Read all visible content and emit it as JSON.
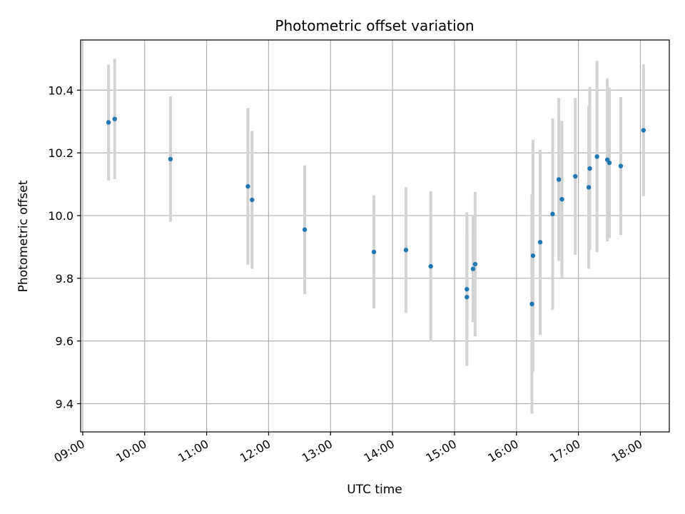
{
  "chart_data": {
    "type": "scatter",
    "title": "Photometric offset variation",
    "xlabel": "UTC time",
    "ylabel": "Photometric offset",
    "xlim": [
      "08:58",
      "18:28"
    ],
    "ylim": [
      9.31,
      10.56
    ],
    "x_ticks": [
      "09:00",
      "10:00",
      "11:00",
      "12:00",
      "13:00",
      "14:00",
      "15:00",
      "16:00",
      "17:00",
      "18:00"
    ],
    "y_ticks": [
      9.4,
      9.6,
      9.8,
      10.0,
      10.2,
      10.4
    ],
    "grid": true,
    "legend": "none",
    "colors": {
      "point": "#1f77b4",
      "errorbar": "#d3d3d3",
      "grid": "#b0b0b0"
    },
    "points": [
      {
        "x": "09:25",
        "y": 10.297,
        "yerr": 0.185
      },
      {
        "x": "09:31",
        "y": 10.308,
        "yerr": 0.192
      },
      {
        "x": "10:25",
        "y": 10.18,
        "yerr": 0.2
      },
      {
        "x": "11:40",
        "y": 10.093,
        "yerr": 0.25
      },
      {
        "x": "11:44",
        "y": 10.05,
        "yerr": 0.22
      },
      {
        "x": "12:35",
        "y": 9.955,
        "yerr": 0.205
      },
      {
        "x": "13:42",
        "y": 9.884,
        "yerr": 0.18
      },
      {
        "x": "14:13",
        "y": 9.89,
        "yerr": 0.2
      },
      {
        "x": "14:37",
        "y": 9.838,
        "yerr": 0.24
      },
      {
        "x": "15:12",
        "y": 9.765,
        "yerr": 0.245
      },
      {
        "x": "15:12",
        "y": 9.74,
        "yerr": 0.2
      },
      {
        "x": "15:18",
        "y": 9.83,
        "yerr": 0.17
      },
      {
        "x": "15:20",
        "y": 9.845,
        "yerr": 0.23
      },
      {
        "x": "16:15",
        "y": 9.718,
        "yerr": 0.35
      },
      {
        "x": "16:16",
        "y": 9.872,
        "yerr": 0.37
      },
      {
        "x": "16:23",
        "y": 9.915,
        "yerr": 0.295
      },
      {
        "x": "16:35",
        "y": 10.005,
        "yerr": 0.305
      },
      {
        "x": "16:41",
        "y": 10.115,
        "yerr": 0.26
      },
      {
        "x": "16:44",
        "y": 10.052,
        "yerr": 0.25
      },
      {
        "x": "16:57",
        "y": 10.125,
        "yerr": 0.25
      },
      {
        "x": "17:10",
        "y": 10.09,
        "yerr": 0.26
      },
      {
        "x": "17:11",
        "y": 10.15,
        "yerr": 0.26
      },
      {
        "x": "17:18",
        "y": 10.188,
        "yerr": 0.305
      },
      {
        "x": "17:28",
        "y": 10.178,
        "yerr": 0.26
      },
      {
        "x": "17:30",
        "y": 10.168,
        "yerr": 0.24
      },
      {
        "x": "17:41",
        "y": 10.158,
        "yerr": 0.22
      },
      {
        "x": "18:03",
        "y": 10.272,
        "yerr": 0.21
      }
    ]
  }
}
